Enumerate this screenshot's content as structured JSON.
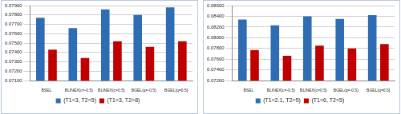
{
  "chart_data": [
    {
      "type": "bar",
      "categories": [
        "BSEL",
        "BLINEX(c=-0.5)",
        "BLINEX(c=0.5)",
        "BGEL(q=-0.5)",
        "BGEL(q=0.5)"
      ],
      "series": [
        {
          "name": "(T1=3, T2=5)",
          "color": "#2e6db4",
          "values": [
            0.0777,
            0.0766,
            0.0786,
            0.078,
            0.0788
          ]
        },
        {
          "name": "(T1=3, T2=8)",
          "color": "#c00000",
          "values": [
            0.0743,
            0.0734,
            0.0752,
            0.0746,
            0.0752
          ]
        }
      ],
      "ylim": [
        0.071,
        0.079
      ],
      "yticks": [
        {
          "value": 0.071,
          "label": "0.07100"
        },
        {
          "value": 0.072,
          "label": "0.07200"
        },
        {
          "value": 0.073,
          "label": "0.07300"
        },
        {
          "value": 0.074,
          "label": "0.07400"
        },
        {
          "value": 0.075,
          "label": "0.07500"
        },
        {
          "value": 0.076,
          "label": "0.07600"
        },
        {
          "value": 0.077,
          "label": "0.07700"
        },
        {
          "value": 0.078,
          "label": "0.07800"
        },
        {
          "value": 0.079,
          "label": "0.07900"
        }
      ],
      "grid": true,
      "legend": "bottom"
    },
    {
      "type": "bar",
      "categories": [
        "BSEL",
        "BLINEX(c=-0.5)",
        "BLINEX(c=0.5)",
        "BGEL(q=-0.5)",
        "BGEL(q=0.5)"
      ],
      "series": [
        {
          "name": "(T1=2.1, T2=5)",
          "color": "#2e6db4",
          "values": [
            0.0834,
            0.0823,
            0.084,
            0.0835,
            0.0842
          ]
        },
        {
          "name": "(T1=6, T2=5)",
          "color": "#c00000",
          "values": [
            0.0777,
            0.0766,
            0.0785,
            0.078,
            0.0788
          ]
        }
      ],
      "ylim": [
        0.072,
        0.086
      ],
      "yticks": [
        {
          "value": 0.072,
          "label": "0.07200"
        },
        {
          "value": 0.074,
          "label": "0.07400"
        },
        {
          "value": 0.076,
          "label": "0.07600"
        },
        {
          "value": 0.078,
          "label": "0.07800"
        },
        {
          "value": 0.08,
          "label": "0.08000"
        },
        {
          "value": 0.082,
          "label": "0.08200"
        },
        {
          "value": 0.084,
          "label": "0.08400"
        },
        {
          "value": 0.086,
          "label": "0.08600"
        }
      ],
      "grid": true,
      "legend": "bottom"
    }
  ]
}
